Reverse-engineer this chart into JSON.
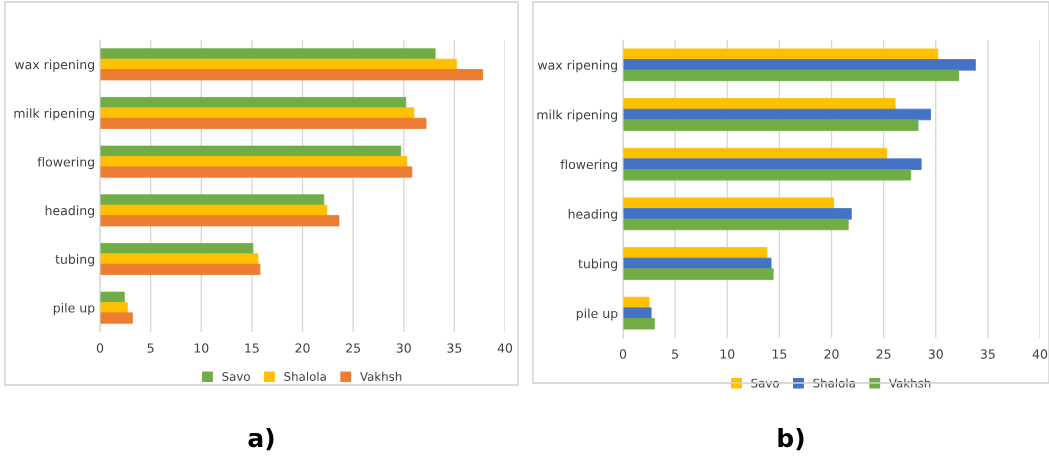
{
  "chart_data": [
    {
      "type": "bar",
      "orientation": "horizontal",
      "categories": [
        "wax ripening",
        "milk ripening",
        "flowering",
        "heading",
        "tubing",
        "pile up"
      ],
      "series": [
        {
          "name": "Savo",
          "color": "#70ad47",
          "values": [
            33.1,
            30.2,
            29.7,
            22.1,
            15.1,
            2.4
          ]
        },
        {
          "name": "Shalola",
          "color": "#ffc000",
          "values": [
            35.2,
            31.0,
            30.3,
            22.4,
            15.6,
            2.7
          ]
        },
        {
          "name": "Vakhsh",
          "color": "#ed7d31",
          "values": [
            37.8,
            32.2,
            30.8,
            23.6,
            15.8,
            3.2
          ]
        }
      ],
      "xlim": [
        0,
        40
      ],
      "xticks": [
        0,
        5,
        10,
        15,
        20,
        25,
        30,
        35,
        40
      ],
      "grid": "x",
      "legend": "bottom",
      "annotations": [
        "a)"
      ]
    },
    {
      "type": "bar",
      "orientation": "horizontal",
      "categories": [
        "wax ripening",
        "milk ripening",
        "flowering",
        "heading",
        "tubing",
        "pile up"
      ],
      "series": [
        {
          "name": "Savo",
          "color": "#ffc000",
          "values": [
            30.2,
            26.1,
            25.3,
            20.2,
            13.8,
            2.5
          ]
        },
        {
          "name": "Shalola",
          "color": "#4472c4",
          "values": [
            33.8,
            29.5,
            28.6,
            21.9,
            14.2,
            2.7
          ]
        },
        {
          "name": "Vakhsh",
          "color": "#70ad47",
          "values": [
            32.2,
            28.3,
            27.6,
            21.6,
            14.4,
            3.0
          ]
        }
      ],
      "xlim": [
        0,
        40
      ],
      "xticks": [
        0,
        5,
        10,
        15,
        20,
        25,
        30,
        35,
        40
      ],
      "grid": "x",
      "legend": "bottom",
      "annotations": [
        "b)"
      ]
    }
  ]
}
